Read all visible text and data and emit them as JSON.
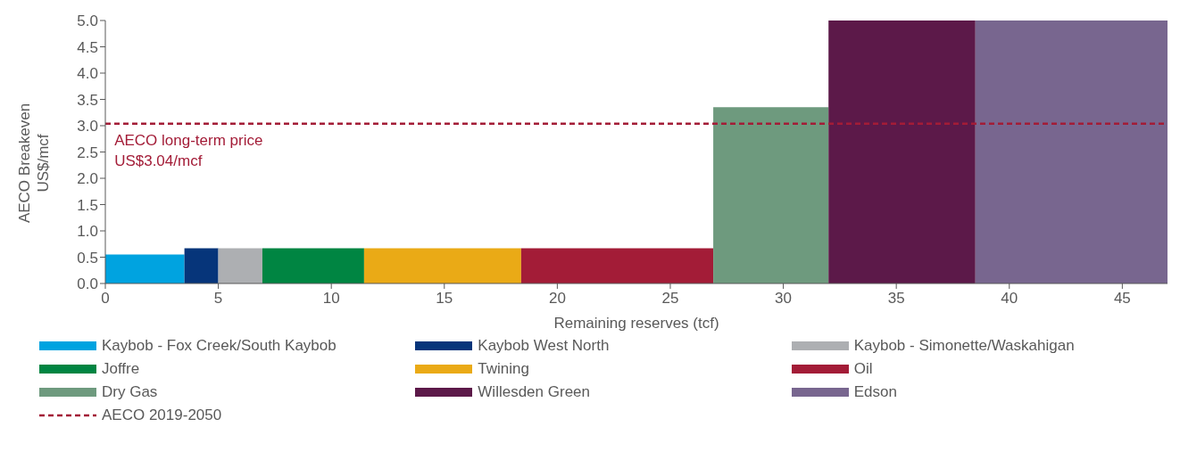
{
  "chart_data": {
    "type": "histogram",
    "xlabel": "Remaining reserves (tcf)",
    "ylabel": "AECO Breakeven\nUS$/mcf",
    "xlim": [
      0,
      47
    ],
    "xticks": [
      0,
      5,
      10,
      15,
      20,
      25,
      30,
      35,
      40,
      45
    ],
    "ylim": [
      0,
      5
    ],
    "yticks": [
      {
        "value": 0,
        "label": "0.0"
      },
      {
        "value": 0.5,
        "label": "0.5"
      },
      {
        "value": 1,
        "label": "1.0"
      },
      {
        "value": 1.5,
        "label": "1.5"
      },
      {
        "value": 2,
        "label": "2.0"
      },
      {
        "value": 2.5,
        "label": "2.5"
      },
      {
        "value": 3,
        "label": "3.0"
      },
      {
        "value": 3.5,
        "label": "3.5"
      },
      {
        "value": 4,
        "label": "4.0"
      },
      {
        "value": 4.5,
        "label": "4.5"
      },
      {
        "value": 5,
        "label": "5.0"
      }
    ],
    "legend": "bottom",
    "series": [
      {
        "name": "Kaybob - Fox Creek/South Kaybob",
        "color": "#00a3e0",
        "bins": [
          0,
          3.5
        ],
        "values": [
          0.55
        ]
      },
      {
        "name": "Kaybob West North",
        "color": "#06357a",
        "bins": [
          3.5,
          5.0
        ],
        "values": [
          0.67
        ]
      },
      {
        "name": "Kaybob - Simonette/Waskahigan",
        "color": "#adafb2",
        "bins": [
          5.0,
          6.95
        ],
        "values": [
          0.67
        ]
      },
      {
        "name": "Joffre",
        "color": "#008542",
        "bins": [
          6.95,
          11.45
        ],
        "values": [
          0.67
        ]
      },
      {
        "name": "Twining",
        "color": "#eaaa16",
        "bins": [
          11.45,
          18.4
        ],
        "values": [
          0.67
        ]
      },
      {
        "name": "Oil",
        "color": "#a31c37",
        "bins": [
          18.4,
          26.9
        ],
        "values": [
          0.67
        ]
      },
      {
        "name": "Dry Gas",
        "color": "#6e9a7e",
        "bins": [
          26.9,
          32.0
        ],
        "values": [
          3.35
        ]
      },
      {
        "name": "Willesden Green",
        "color": "#5c1949",
        "bins": [
          32.0,
          38.5
        ],
        "values": [
          5.0
        ]
      },
      {
        "name": "Edson",
        "color": "#78668f",
        "bins": [
          38.5,
          47
        ],
        "values": [
          5.0
        ]
      },
      {
        "name": "AECO 2019-2050",
        "type": "line",
        "line_style": "dashed",
        "color": "#a31c37",
        "x": [
          0,
          47
        ],
        "values": [
          3.04,
          3.04
        ]
      }
    ],
    "annotations": [
      {
        "text": "AECO long-term price\nUS$3.04/mcf",
        "x": 0.4,
        "y": 3.04
      }
    ]
  }
}
